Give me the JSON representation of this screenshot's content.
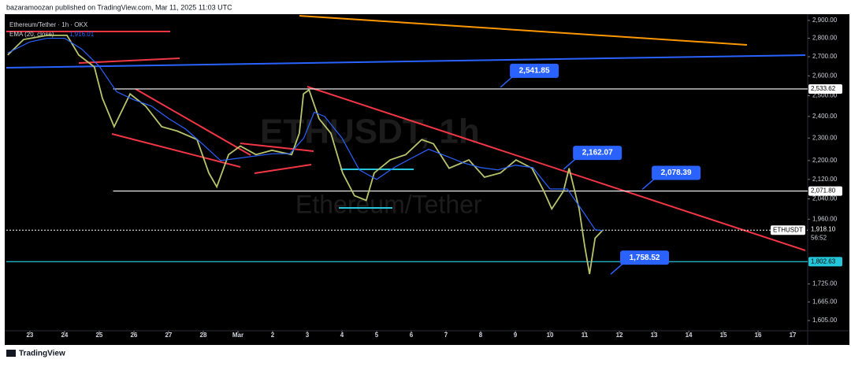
{
  "header": {
    "published": "bazaramoozan published on TradingView.com, Mar 11, 2025 11:03 UTC",
    "footer": "TradingView"
  },
  "chart_data": {
    "type": "line",
    "symbol_title": "Ethereum/Tether · 1h · OKX",
    "indicator": {
      "name": "EMA (20, close)",
      "value": "1,916.01"
    },
    "watermark": {
      "symbol": "ETHUSDT, 1h",
      "name": "Ethereum/Tether"
    },
    "log_scale": true,
    "grid": false,
    "xlim": [
      -0.68,
      22.43
    ],
    "ylim": [
      1573,
      2936
    ],
    "xticks": [
      {
        "value": 0,
        "label": "23"
      },
      {
        "value": 1,
        "label": "24"
      },
      {
        "value": 2,
        "label": "25"
      },
      {
        "value": 3,
        "label": "26"
      },
      {
        "value": 4,
        "label": "27"
      },
      {
        "value": 5,
        "label": "28"
      },
      {
        "value": 6,
        "label": "Mar"
      },
      {
        "value": 7,
        "label": "2"
      },
      {
        "value": 8,
        "label": "3"
      },
      {
        "value": 9,
        "label": "4"
      },
      {
        "value": 10,
        "label": "5"
      },
      {
        "value": 11,
        "label": "6"
      },
      {
        "value": 12,
        "label": "7"
      },
      {
        "value": 13,
        "label": "8"
      },
      {
        "value": 14,
        "label": "9"
      },
      {
        "value": 15,
        "label": "10"
      },
      {
        "value": 16,
        "label": "11"
      },
      {
        "value": 17,
        "label": "12"
      },
      {
        "value": 18,
        "label": "13"
      },
      {
        "value": 19,
        "label": "14"
      },
      {
        "value": 20,
        "label": "15"
      },
      {
        "value": 21,
        "label": "16"
      },
      {
        "value": 22,
        "label": "17"
      }
    ],
    "yticks": [
      {
        "value": 2900,
        "label": "2,900.00"
      },
      {
        "value": 2800,
        "label": "2,800.00"
      },
      {
        "value": 2700,
        "label": "2,700.00"
      },
      {
        "value": 2600,
        "label": "2,600.00"
      },
      {
        "value": 2500,
        "label": "2,500.00"
      },
      {
        "value": 2400,
        "label": "2,400.00"
      },
      {
        "value": 2300,
        "label": "2,300.00"
      },
      {
        "value": 2200,
        "label": "2,200.00"
      },
      {
        "value": 2120,
        "label": "2,120.00"
      },
      {
        "value": 2040,
        "label": "2,040.00"
      },
      {
        "value": 1960,
        "label": "1,960.00"
      },
      {
        "value": 1725,
        "label": "1,725.00"
      },
      {
        "value": 1665,
        "label": "1,665.00"
      },
      {
        "value": 1605,
        "label": "1,605.00"
      }
    ],
    "series": [
      {
        "name": "ETHUSDT",
        "color": "#b9c46c",
        "x": [
          -0.64,
          -0.18,
          0.5,
          1.07,
          1.41,
          1.86,
          2.09,
          2.43,
          2.89,
          3.34,
          3.8,
          4.25,
          4.82,
          5.16,
          5.39,
          5.73,
          6.07,
          6.52,
          6.98,
          7.55,
          7.77,
          7.89,
          8.05,
          8.34,
          8.68,
          9.02,
          9.36,
          9.7,
          9.93,
          10.39,
          10.84,
          11.3,
          11.64,
          12.09,
          12.66,
          13.11,
          13.57,
          14.02,
          14.48,
          14.82,
          15.05,
          15.39,
          15.55,
          15.84,
          16,
          16.14,
          16.3,
          16.52
        ],
        "values": [
          2709,
          2793,
          2816,
          2816,
          2709,
          2646,
          2488,
          2352,
          2509,
          2449,
          2352,
          2332,
          2293,
          2147,
          2089,
          2226,
          2264,
          2226,
          2245,
          2226,
          2322,
          2509,
          2529,
          2389,
          2322,
          2147,
          2053,
          2034,
          2147,
          2203,
          2226,
          2293,
          2274,
          2167,
          2203,
          2129,
          2147,
          2203,
          2167,
          2072,
          2000,
          2072,
          2167,
          2000,
          1859,
          1759,
          1888,
          1918
        ]
      },
      {
        "name": "EMA",
        "color": "#2962ff",
        "x": [
          -0.64,
          0,
          0.5,
          1,
          1.5,
          2,
          2.5,
          3,
          3.5,
          4,
          4.5,
          5,
          5.5,
          6,
          6.5,
          7,
          7.5,
          7.9,
          8.2,
          8.5,
          9,
          9.5,
          10,
          10.5,
          11,
          11.5,
          12,
          12.5,
          13,
          13.5,
          14,
          14.5,
          15,
          15.5,
          16,
          16.3,
          16.52
        ],
        "values": [
          2720,
          2780,
          2800,
          2800,
          2740,
          2650,
          2520,
          2480,
          2450,
          2390,
          2340,
          2270,
          2200,
          2210,
          2220,
          2230,
          2230,
          2300,
          2420,
          2400,
          2300,
          2160,
          2120,
          2170,
          2210,
          2250,
          2220,
          2190,
          2170,
          2160,
          2180,
          2170,
          2080,
          2080,
          1980,
          1920,
          1916
        ]
      }
    ],
    "levels": [
      {
        "value": 2533.62,
        "label": "2,533.62",
        "color": "#ffffff"
      },
      {
        "value": 2071.8,
        "label": "2,071.80",
        "color": "#ffffff"
      },
      {
        "value": 1802.63,
        "label": "1,802.63",
        "color": "#26c6da"
      }
    ],
    "current_price": {
      "value": 1918.1,
      "label": "1,918.10",
      "symbol": "ETHUSDT",
      "countdown": "56:52"
    },
    "callouts": [
      {
        "x": 13.57,
        "value": 2541.85,
        "label": "2,541.85"
      },
      {
        "x": 15.39,
        "value": 2162.07,
        "label": "2,162.07"
      },
      {
        "x": 17.66,
        "value": 2078.39,
        "label": "2,078.39"
      },
      {
        "x": 16.75,
        "value": 1758.52,
        "label": "1,758.52"
      }
    ]
  }
}
